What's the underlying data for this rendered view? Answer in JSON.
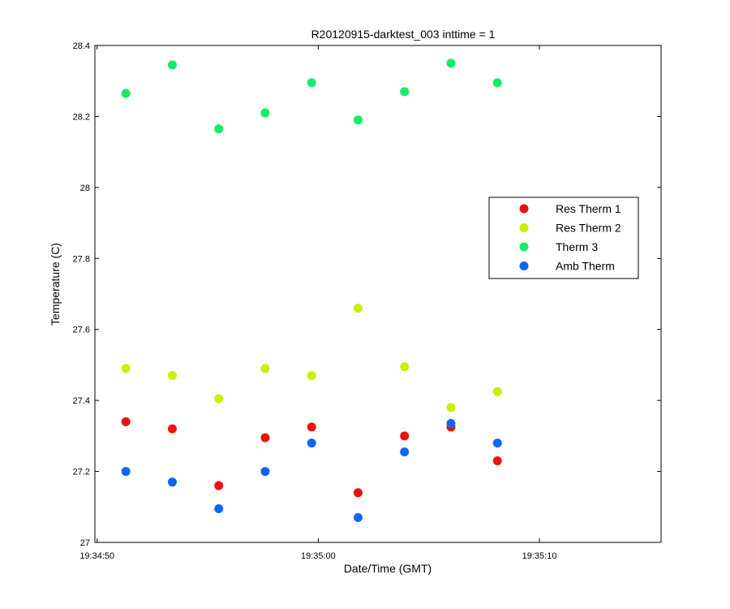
{
  "chart_data": {
    "type": "scatter",
    "title": "R20120915-darktest_003 inttime = 1",
    "xlabel": "Date/Time (GMT)",
    "ylabel": "Temperature (C)",
    "xlim": [
      "19:34:49.9",
      "19:35:15.5"
    ],
    "ylim": [
      27,
      28.4
    ],
    "x_ticks": [
      "19:34:50",
      "19:35:00",
      "19:35:10"
    ],
    "y_ticks": [
      "27",
      "27.2",
      "27.4",
      "27.6",
      "27.8",
      "28",
      "28.2",
      "28.4"
    ],
    "x": [
      "19:34:51.3",
      "19:34:53.4",
      "19:34:55.5",
      "19:34:57.6",
      "19:34:59.7",
      "19:35:01.8",
      "19:35:03.9",
      "19:35:06.0",
      "19:35:08.1"
    ],
    "grid": false,
    "legend_position": "right",
    "series": [
      {
        "name": "Res Therm 1",
        "color": "#ee1111",
        "values": [
          27.34,
          27.32,
          27.16,
          27.295,
          27.325,
          27.14,
          27.3,
          27.325,
          27.23
        ]
      },
      {
        "name": "Res Therm 2",
        "color": "#ccee00",
        "values": [
          27.49,
          27.47,
          27.405,
          27.49,
          27.47,
          27.66,
          27.495,
          27.38,
          27.425
        ]
      },
      {
        "name": "Therm 3",
        "color": "#11ee66",
        "values": [
          28.265,
          28.345,
          28.165,
          28.21,
          28.295,
          28.19,
          28.27,
          28.35,
          28.295
        ]
      },
      {
        "name": "Amb Therm",
        "color": "#1166ee",
        "values": [
          27.2,
          27.17,
          27.095,
          27.2,
          27.28,
          27.07,
          27.255,
          27.335,
          27.28
        ]
      }
    ]
  }
}
